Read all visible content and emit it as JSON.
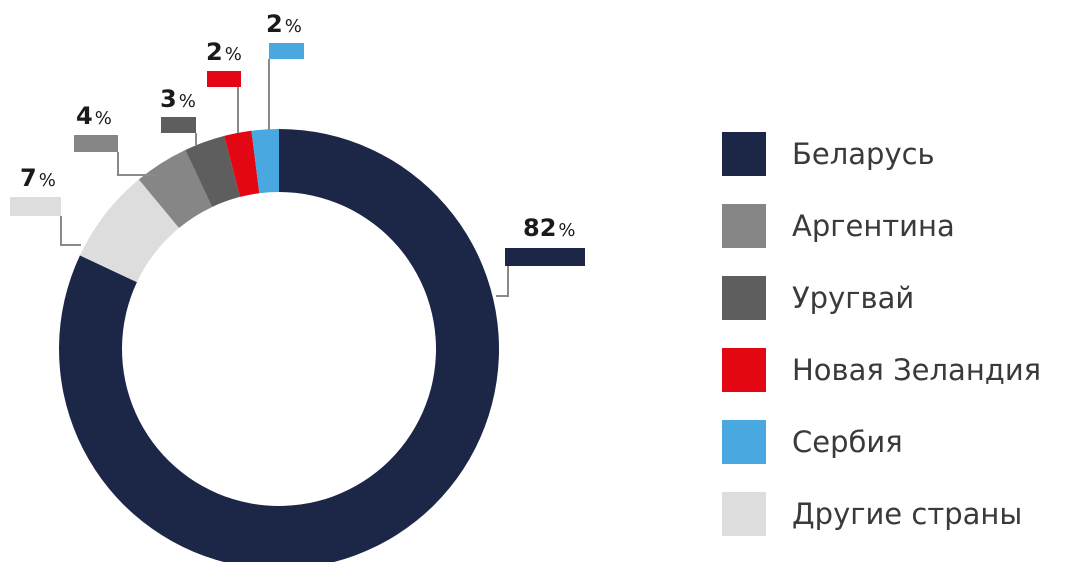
{
  "chart_data": {
    "type": "pie",
    "variant": "donut",
    "categories": [
      "Беларусь",
      "Аргентина",
      "Уругвай",
      "Новая Зеландия",
      "Сербия",
      "Другие страны"
    ],
    "values": [
      82,
      4,
      3,
      2,
      2,
      7
    ],
    "value_labels": [
      "82",
      "4",
      "3",
      "2",
      "2",
      "7"
    ],
    "unit": "%",
    "colors": [
      "#1c2748",
      "#868686",
      "#5e5e5e",
      "#e30613",
      "#4aa8e0",
      "#dddddd"
    ],
    "draw_order": [
      "Сербия",
      "Новая Зеландия",
      "Уругвай",
      "Аргентина",
      "Другие страны"
    ],
    "legend_position": "right",
    "title": ""
  }
}
